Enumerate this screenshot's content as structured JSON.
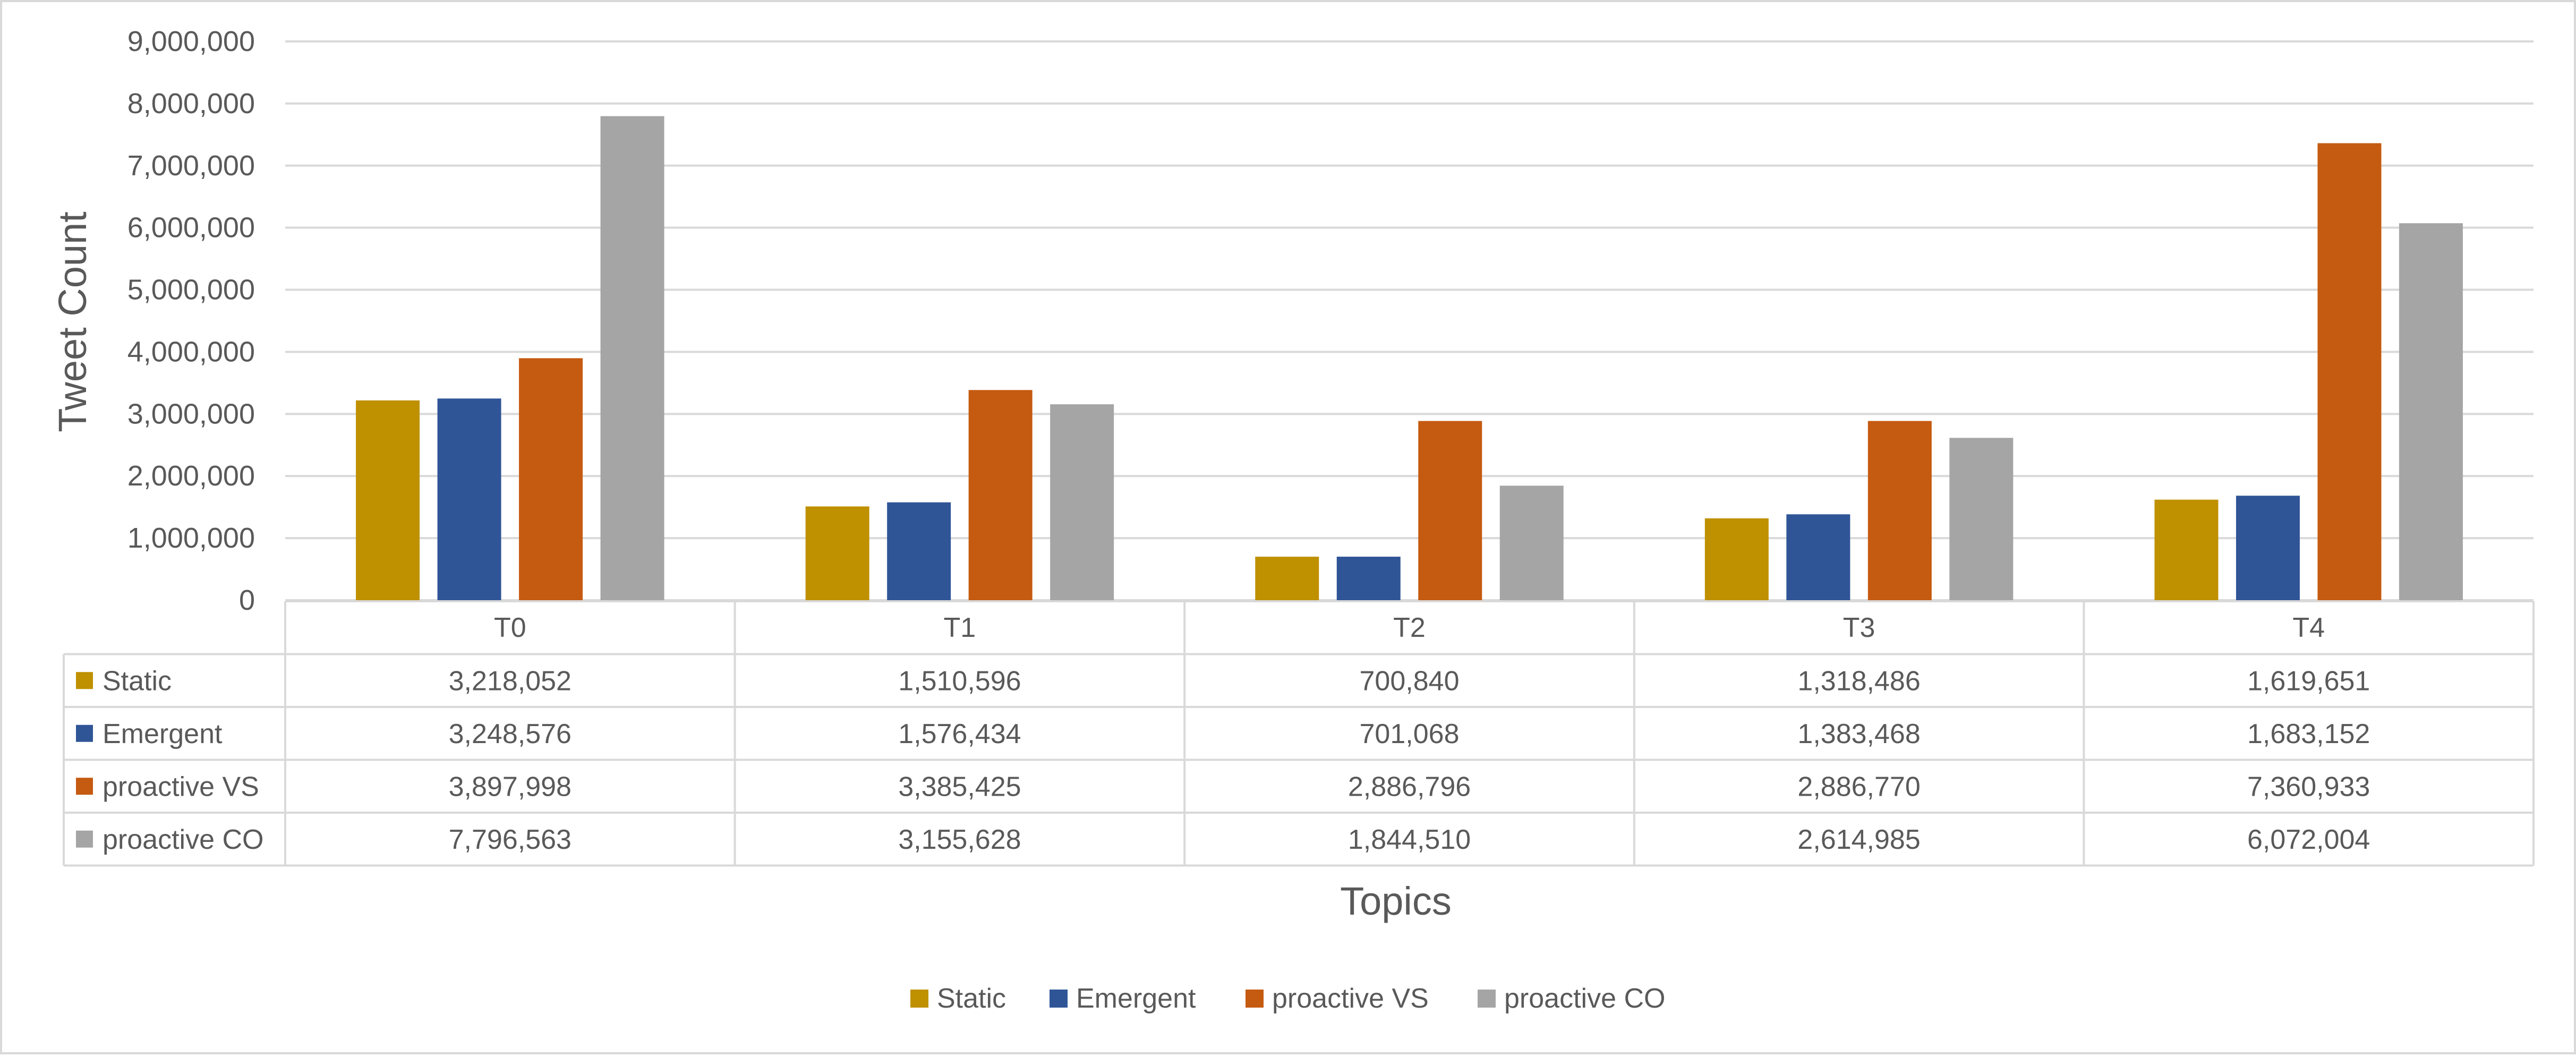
{
  "chart_data": {
    "type": "bar",
    "title": "",
    "xlabel": "Topics",
    "ylabel": "Tweet Count",
    "ylim": [
      0,
      9000000
    ],
    "yticks": [
      0,
      1000000,
      2000000,
      3000000,
      4000000,
      5000000,
      6000000,
      7000000,
      8000000,
      9000000
    ],
    "ytick_labels": [
      "0",
      "1,000,000",
      "2,000,000",
      "3,000,000",
      "4,000,000",
      "5,000,000",
      "6,000,000",
      "7,000,000",
      "8,000,000",
      "9,000,000"
    ],
    "grid": true,
    "legend_position": "bottom",
    "has_data_table": true,
    "categories": [
      "T0",
      "T1",
      "T2",
      "T3",
      "T4"
    ],
    "series": [
      {
        "name": "Static",
        "color": "#BF9000",
        "values": [
          3218052,
          1510596,
          700840,
          1318486,
          1619651
        ],
        "labels": [
          "3,218,052",
          "1,510,596",
          "700,840",
          "1,318,486",
          "1,619,651"
        ]
      },
      {
        "name": "Emergent",
        "color": "#2F5597",
        "values": [
          3248576,
          1576434,
          701068,
          1383468,
          1683152
        ],
        "labels": [
          "3,248,576",
          "1,576,434",
          "701,068",
          "1,383,468",
          "1,683,152"
        ]
      },
      {
        "name": "proactive VS",
        "color": "#C55A11",
        "values": [
          3897998,
          3385425,
          2886796,
          2886770,
          7360933
        ],
        "labels": [
          "3,897,998",
          "3,385,425",
          "2,886,796",
          "2,886,770",
          "7,360,933"
        ]
      },
      {
        "name": "proactive CO",
        "color": "#A5A5A5",
        "values": [
          7796563,
          3155628,
          1844510,
          2614985,
          6072004
        ],
        "labels": [
          "7,796,563",
          "3,155,628",
          "1,844,510",
          "2,614,985",
          "6,072,004"
        ]
      }
    ]
  }
}
